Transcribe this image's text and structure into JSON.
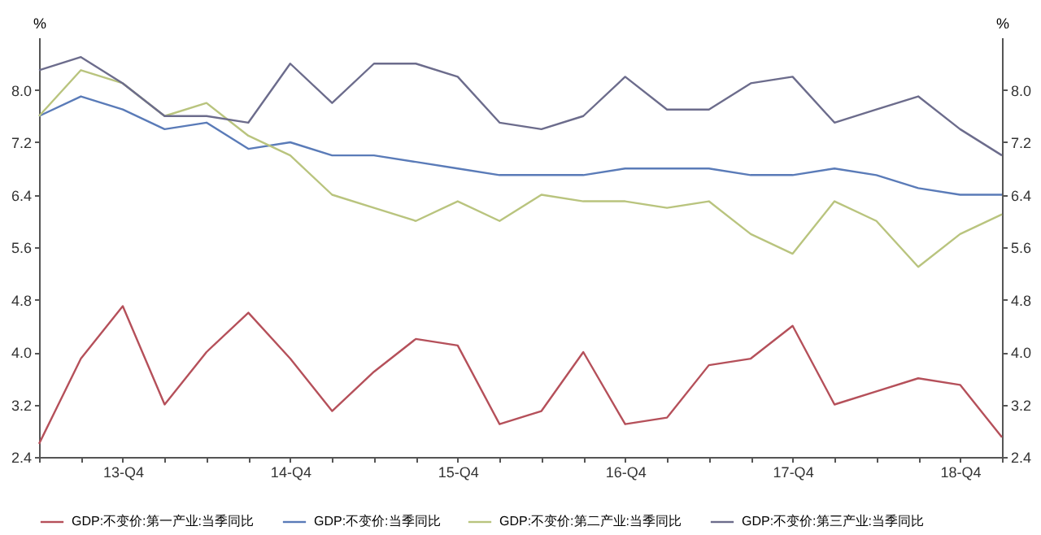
{
  "chart_data": {
    "type": "line",
    "categories": [
      null,
      null,
      "13-Q4",
      null,
      null,
      null,
      "14-Q4",
      null,
      null,
      null,
      "15-Q4",
      null,
      null,
      null,
      "16-Q4",
      null,
      null,
      null,
      "17-Q4",
      null,
      null,
      null,
      "18-Q4",
      null
    ],
    "series": [
      {
        "name": "GDP:不变价:第一产业:当季同比",
        "color": "#b5505a",
        "values": [
          2.6,
          3.9,
          4.7,
          3.2,
          4.0,
          4.6,
          3.9,
          3.1,
          3.7,
          4.2,
          4.1,
          2.9,
          3.1,
          4.0,
          2.9,
          3.0,
          3.8,
          3.9,
          4.4,
          3.2,
          3.4,
          3.6,
          3.5,
          2.7
        ]
      },
      {
        "name": "GDP:不变价:当季同比",
        "color": "#5a7bb8",
        "values": [
          7.6,
          7.9,
          7.7,
          7.4,
          7.5,
          7.1,
          7.2,
          7.0,
          7.0,
          6.9,
          6.8,
          6.7,
          6.7,
          6.7,
          6.8,
          6.8,
          6.8,
          6.7,
          6.7,
          6.8,
          6.7,
          6.5,
          6.4,
          6.4
        ]
      },
      {
        "name": "GDP:不变价:第二产业:当季同比",
        "color": "#b9c47e",
        "values": [
          7.6,
          8.3,
          8.1,
          7.6,
          7.8,
          7.3,
          7.0,
          6.4,
          6.2,
          6.0,
          6.3,
          6.0,
          6.4,
          6.3,
          6.3,
          6.2,
          6.3,
          5.8,
          5.5,
          6.3,
          6.0,
          5.3,
          5.8,
          6.1
        ]
      },
      {
        "name": "GDP:不变价:第三产业:当季同比",
        "color": "#6c6c8c",
        "values": [
          8.3,
          8.5,
          8.1,
          7.6,
          7.6,
          7.5,
          8.4,
          7.8,
          8.4,
          8.4,
          8.2,
          7.5,
          7.4,
          7.6,
          8.2,
          7.7,
          7.7,
          8.1,
          8.2,
          7.5,
          7.7,
          7.9,
          7.4,
          7.0
        ]
      }
    ],
    "ylabel": "%",
    "y2label": "%",
    "ylim": [
      2.4,
      8.8
    ],
    "yticks": [
      2.4,
      3.2,
      {
        "value": 4,
        "label": "4.0"
      },
      4.8,
      5.6,
      6.4,
      7.2,
      {
        "value": 8,
        "label": "8.0"
      }
    ],
    "y2lim": [
      2.4,
      8.8
    ],
    "y2ticks": [
      2.4,
      3.2,
      {
        "value": 4,
        "label": "4.0"
      },
      4.8,
      5.6,
      6.4,
      7.2,
      {
        "value": 8,
        "label": "8.0"
      }
    ],
    "legend": "bottom"
  }
}
